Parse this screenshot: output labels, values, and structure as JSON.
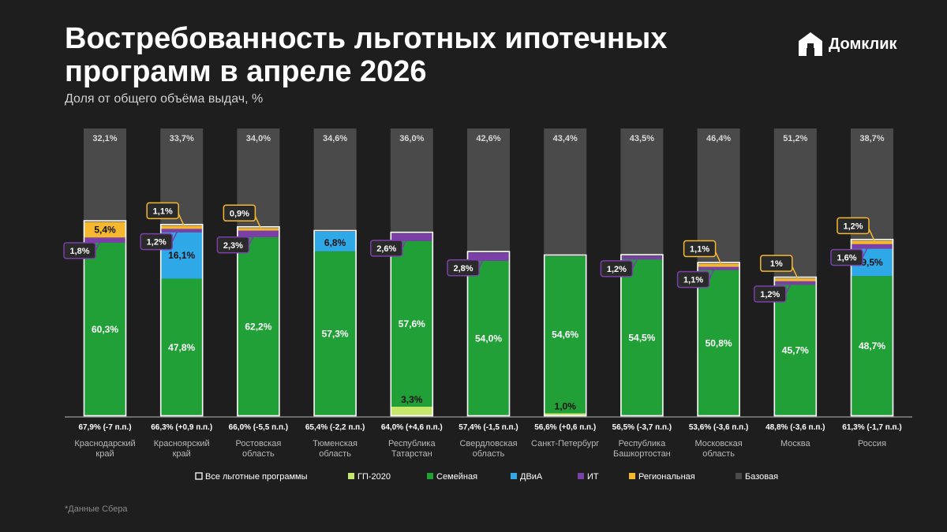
{
  "header": {
    "title": "Востребованность льготных ипотечных программ в апреле 2026",
    "subtitle": "Доля от общего объёма выдач, %"
  },
  "brand": {
    "name": "Домклик",
    "icon": "domclick-house-icon"
  },
  "footnote": "*Данные Сбера",
  "colors": {
    "background": "#1e1e1e",
    "gp2020": "#c5e86c",
    "family": "#21a038",
    "dvia": "#2ea8e6",
    "it": "#7b3fa8",
    "regional": "#f5b82e",
    "base": "#4a4a4a",
    "all_outline": "#ffffff"
  },
  "chart_data": {
    "type": "bar",
    "stacked": true,
    "ylim": [
      0,
      100
    ],
    "grid": false,
    "legend_position": "bottom",
    "categories": [
      "Краснодарский край",
      "Красноярский край",
      "Ростовская область",
      "Тюменская область",
      "Республика Татарстан",
      "Свердловская область",
      "Санкт-Петербург",
      "Республика Башкортостан",
      "Московская область",
      "Москва",
      "Россия"
    ],
    "category_labels": [
      [
        "Краснодарский",
        "край"
      ],
      [
        "Красноярский",
        "край"
      ],
      [
        "Ростовская",
        "область"
      ],
      [
        "Тюменская",
        "область"
      ],
      [
        "Республика",
        "Татарстан"
      ],
      [
        "Свердловская",
        "область"
      ],
      [
        "Санкт-Петербург"
      ],
      [
        "Республика",
        "Башкортостан"
      ],
      [
        "Московская",
        "область"
      ],
      [
        "Москва"
      ],
      [
        "Россия"
      ]
    ],
    "totals": [
      "67,9% (-7 п.п.)",
      "66,3% (+0,9 п.п.)",
      "66,0% (-5,5 п.п.)",
      "65,4% (-2,2 п.п.)",
      "64,0% (+4,6 п.п.)",
      "57,4% (-1,5 п.п.)",
      "56,6% (+0,6 п.п.)",
      "56,5% (-3,7 п.п.)",
      "53,6% (-3,6 п.п.)",
      "48,8% (-3,6 п.п.)",
      "61,3% (-1,7 п.п.)"
    ],
    "series": [
      {
        "name": "ГП-2020",
        "color": "#c5e86c",
        "values": [
          0,
          0,
          0,
          0,
          3.3,
          0,
          1.0,
          0,
          0,
          0,
          0
        ],
        "labels": [
          "",
          "",
          "",
          "",
          "3,3%",
          "",
          "1,0%",
          "",
          "",
          "",
          ""
        ]
      },
      {
        "name": "Семейная",
        "color": "#21a038",
        "values": [
          60.3,
          47.8,
          62.2,
          57.3,
          57.6,
          54.0,
          54.6,
          54.5,
          50.8,
          45.7,
          48.7
        ],
        "labels": [
          "60,3%",
          "47,8%",
          "62,2%",
          "57,3%",
          "57,6%",
          "54,0%",
          "54,6%",
          "54,5%",
          "50,8%",
          "45,7%",
          "48,7%"
        ]
      },
      {
        "name": "ДВиА",
        "color": "#2ea8e6",
        "values": [
          0,
          16.1,
          0,
          6.8,
          0,
          0,
          0,
          0,
          0,
          0,
          9.5
        ],
        "labels": [
          "",
          "16,1%",
          "",
          "6,8%",
          "",
          "",
          "",
          "",
          "",
          "",
          "9,5%"
        ]
      },
      {
        "name": "ИТ",
        "color": "#7b3fa8",
        "values": [
          1.8,
          1.2,
          2.3,
          0,
          2.6,
          2.8,
          0,
          1.2,
          1.1,
          1.2,
          1.6
        ],
        "labels": [
          "1,8%",
          "1,2%",
          "2,3%",
          "",
          "2,6%",
          "2,8%",
          "",
          "1,2%",
          "1,1%",
          "1,2%",
          "1,6%"
        ]
      },
      {
        "name": "Региональная",
        "color": "#f5b82e",
        "values": [
          5.4,
          1.1,
          0.9,
          0,
          0,
          0,
          0,
          0,
          1.1,
          1.0,
          1.2
        ],
        "labels": [
          "5,4%",
          "1,1%",
          "0,9%",
          "",
          "",
          "",
          "",
          "",
          "1,1%",
          "1%",
          "1,2%"
        ]
      },
      {
        "name": "Базовая",
        "color": "#4a4a4a",
        "values": [
          32.1,
          33.7,
          34.0,
          34.6,
          36.0,
          42.6,
          43.4,
          43.5,
          46.4,
          51.2,
          38.7
        ],
        "labels": [
          "32,1%",
          "33,7%",
          "34,0%",
          "34,6%",
          "36,0%",
          "42,6%",
          "43,4%",
          "43,5%",
          "46,4%",
          "51,2%",
          "38,7%"
        ]
      }
    ],
    "legend": [
      {
        "name": "Все льготные программы",
        "color": "#ffffff",
        "outline": true
      },
      {
        "name": "ГП-2020",
        "color": "#c5e86c"
      },
      {
        "name": "Семейная",
        "color": "#21a038"
      },
      {
        "name": "ДВиА",
        "color": "#2ea8e6"
      },
      {
        "name": "ИТ",
        "color": "#7b3fa8"
      },
      {
        "name": "Региональная",
        "color": "#f5b82e"
      },
      {
        "name": "Базовая",
        "color": "#4a4a4a"
      }
    ]
  }
}
